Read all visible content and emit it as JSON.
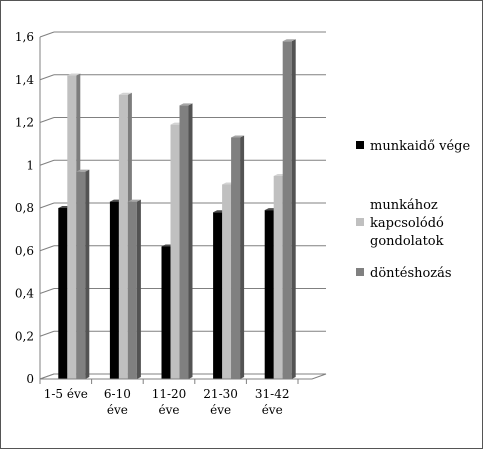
{
  "chart_data": {
    "type": "bar",
    "title": "",
    "xlabel": "",
    "ylabel": "",
    "ylim": [
      0,
      1.6
    ],
    "yticks": [
      "0",
      "0,2",
      "0,4",
      "0,6",
      "0,8",
      "1",
      "1,2",
      "1,4",
      "1,6"
    ],
    "grid": true,
    "legend_position": "right",
    "categories": [
      [
        "1-5 éve"
      ],
      [
        "6-10",
        "éve"
      ],
      [
        "11-20",
        "éve"
      ],
      [
        "21-30",
        "éve"
      ],
      [
        "31-42",
        "éve"
      ]
    ],
    "series": [
      {
        "name": [
          "munkaidő vége"
        ],
        "values": [
          0.8,
          0.83,
          0.62,
          0.78,
          0.79
        ],
        "color": "#000000"
      },
      {
        "name": [
          "munkához",
          "kapcsolódó",
          "gondolatok"
        ],
        "values": [
          1.42,
          1.33,
          1.19,
          0.91,
          0.95
        ],
        "color": "#c0c0c0"
      },
      {
        "name": [
          "döntéshozás"
        ],
        "values": [
          0.97,
          0.83,
          1.28,
          1.13,
          1.58
        ],
        "color": "#808080"
      }
    ]
  }
}
